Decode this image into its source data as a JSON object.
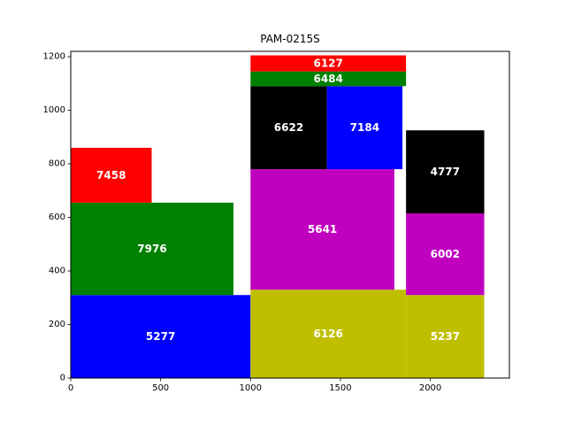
{
  "chart_data": {
    "type": "treemap-packing",
    "title": "PAM-0215S",
    "xlabel": "",
    "ylabel": "",
    "xlim": [
      0,
      2440
    ],
    "ylim": [
      0,
      1220
    ],
    "xticks": [
      0,
      500,
      1000,
      1500,
      2000
    ],
    "yticks": [
      0,
      200,
      400,
      600,
      800,
      1000,
      1200
    ],
    "grid": false,
    "legend": "none",
    "rects": [
      {
        "label": "5277",
        "x0": 0,
        "y0": 0,
        "x1": 1000,
        "y1": 310,
        "color": "#0000ff"
      },
      {
        "label": "7976",
        "x0": 0,
        "y0": 310,
        "x1": 905,
        "y1": 655,
        "color": "#008000"
      },
      {
        "label": "7458",
        "x0": 0,
        "y0": 655,
        "x1": 450,
        "y1": 860,
        "color": "#ff0000"
      },
      {
        "label": "6126",
        "x0": 1000,
        "y0": 0,
        "x1": 1865,
        "y1": 330,
        "color": "#bfbf00"
      },
      {
        "label": "5237",
        "x0": 1865,
        "y0": 0,
        "x1": 2300,
        "y1": 310,
        "color": "#bfbf00"
      },
      {
        "label": "5641",
        "x0": 1000,
        "y0": 330,
        "x1": 1800,
        "y1": 780,
        "color": "#bf00bf"
      },
      {
        "label": "6002",
        "x0": 1865,
        "y0": 310,
        "x1": 2300,
        "y1": 615,
        "color": "#bf00bf"
      },
      {
        "label": "4777",
        "x0": 1865,
        "y0": 615,
        "x1": 2300,
        "y1": 925,
        "color": "#000000"
      },
      {
        "label": "6622",
        "x0": 1000,
        "y0": 780,
        "x1": 1425,
        "y1": 1090,
        "color": "#000000"
      },
      {
        "label": "7184",
        "x0": 1425,
        "y0": 780,
        "x1": 1845,
        "y1": 1090,
        "color": "#0000ff"
      },
      {
        "label": "6484",
        "x0": 1000,
        "y0": 1090,
        "x1": 1865,
        "y1": 1145,
        "color": "#008000"
      },
      {
        "label": "6127",
        "x0": 1000,
        "y0": 1145,
        "x1": 1865,
        "y1": 1205,
        "color": "#ff0000"
      }
    ]
  }
}
